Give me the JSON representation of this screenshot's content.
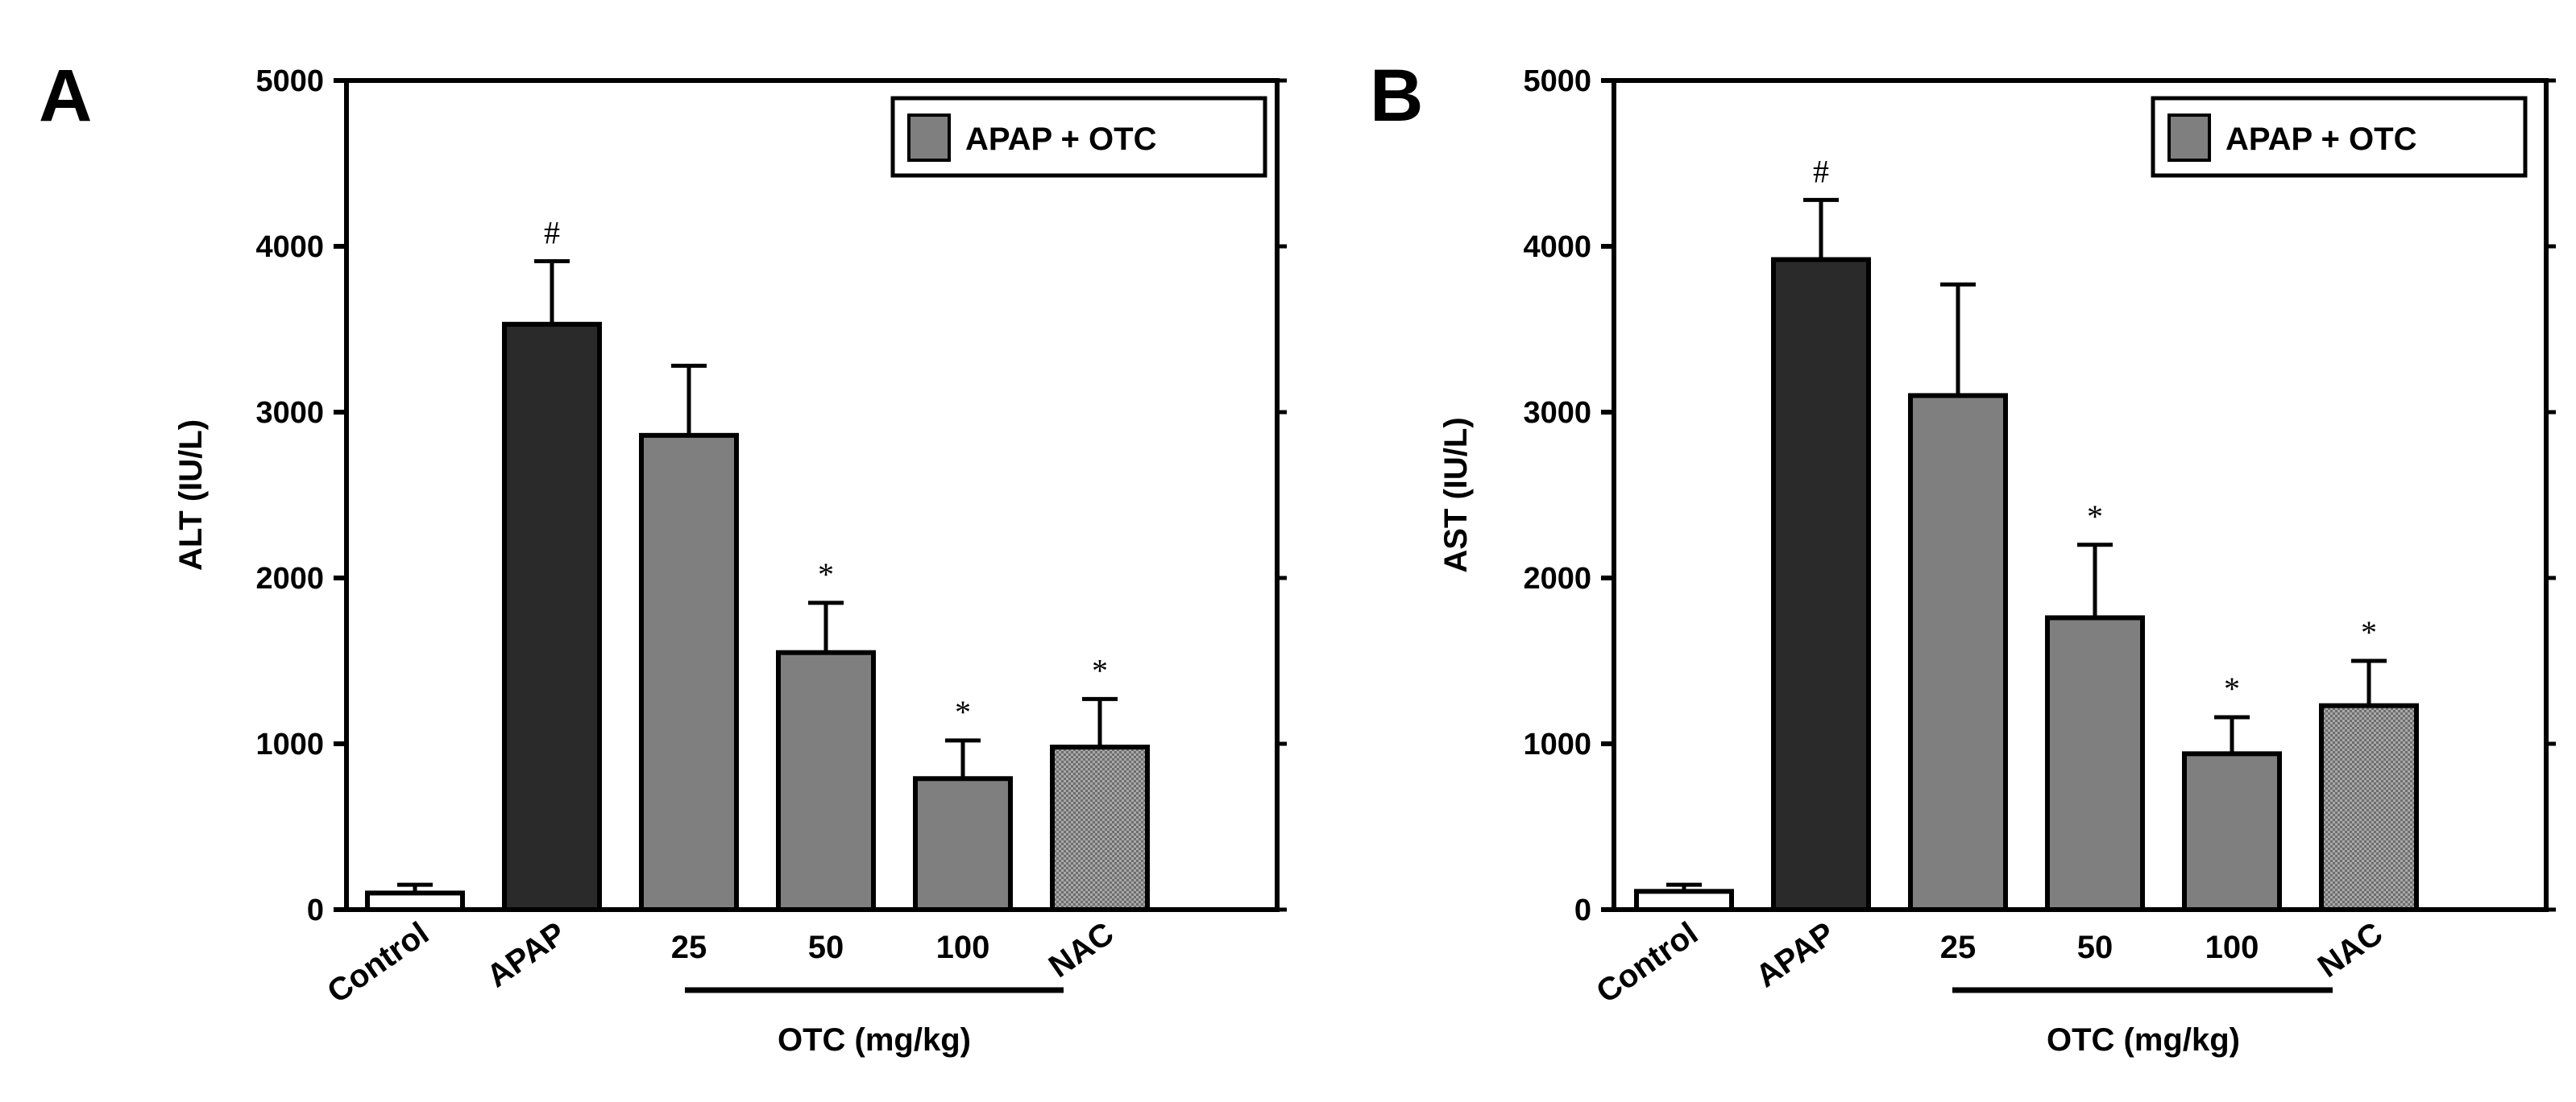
{
  "colors": {
    "control": "#ffffff",
    "apap": "#2a2a2a",
    "otc": "#7f7f7f",
    "nac": "#9a9a9a",
    "stroke": "#000000"
  },
  "chart_data": [
    {
      "type": "bar",
      "panel": "A",
      "ylabel": "ALT (IU/L)",
      "ylim": [
        0,
        5000
      ],
      "yticks": [
        "0",
        "1000",
        "2000",
        "3000",
        "4000",
        "5000"
      ],
      "categories": [
        "Control",
        "APAP",
        "25",
        "50",
        "100",
        "NAC"
      ],
      "values": [
        100,
        3530,
        2860,
        1550,
        790,
        980
      ],
      "errors": [
        50,
        380,
        420,
        300,
        230,
        290
      ],
      "significance": [
        "",
        "#",
        "",
        "*",
        "*",
        "*"
      ],
      "group_label": "OTC (mg/kg)",
      "legend": "APAP + OTC"
    },
    {
      "type": "bar",
      "panel": "B",
      "ylabel": "AST (IU/L)",
      "ylim": [
        0,
        5000
      ],
      "yticks": [
        "0",
        "1000",
        "2000",
        "3000",
        "4000",
        "5000"
      ],
      "categories": [
        "Control",
        "APAP",
        "25",
        "50",
        "100",
        "NAC"
      ],
      "values": [
        110,
        3920,
        3100,
        1760,
        940,
        1230
      ],
      "errors": [
        40,
        360,
        670,
        440,
        220,
        270
      ],
      "significance": [
        "",
        "#",
        "",
        "*",
        "*",
        "*"
      ],
      "group_label": "OTC (mg/kg)",
      "legend": "APAP + OTC"
    }
  ]
}
